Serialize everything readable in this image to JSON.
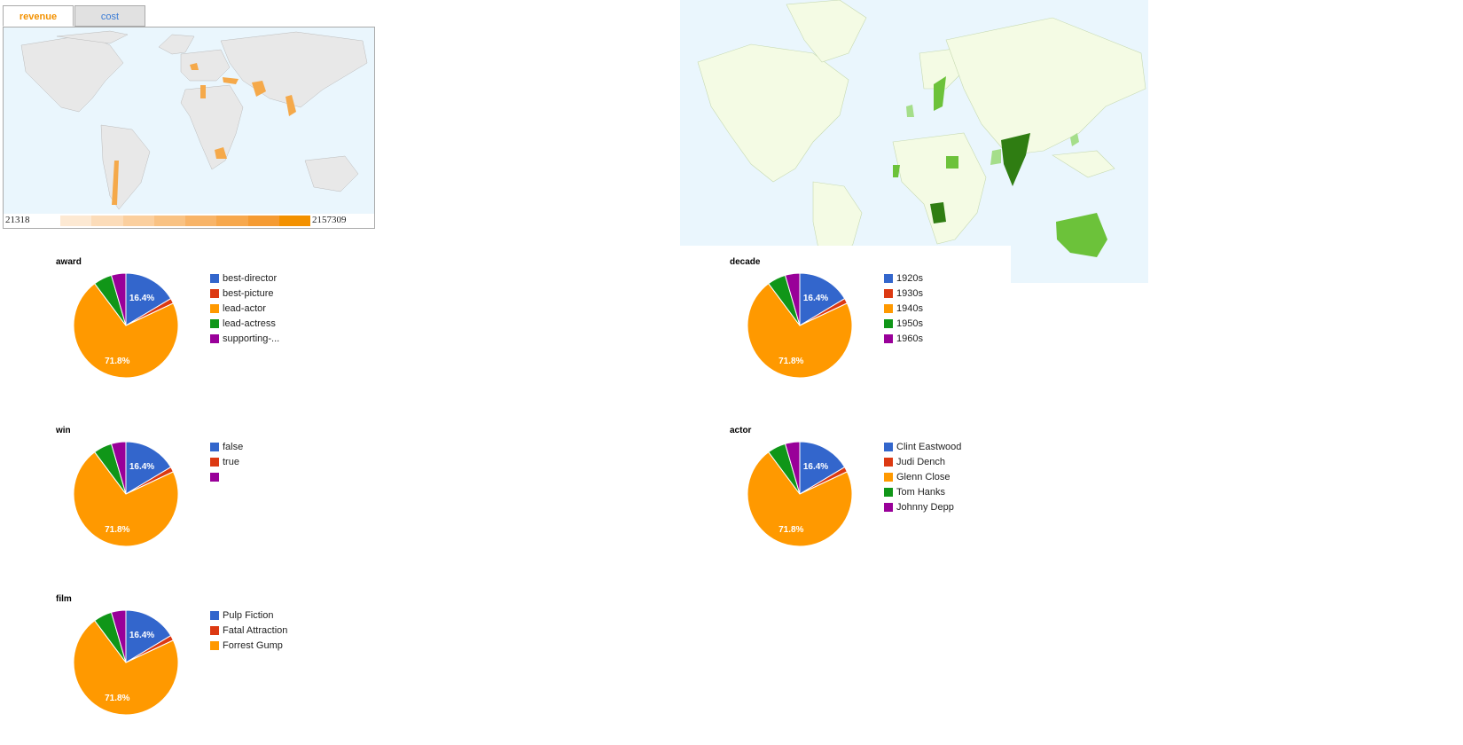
{
  "map_tabs": [
    {
      "label": "revenue",
      "active": true
    },
    {
      "label": "cost",
      "active": false
    }
  ],
  "map_legend": {
    "min": "21318",
    "max": "2157309",
    "gradient": [
      "#fde9d3",
      "#fcdcb9",
      "#fbcf9e",
      "#f9c283",
      "#f8b468",
      "#f7a84d",
      "#f59b33",
      "#f39100"
    ]
  },
  "colors": {
    "ocean": "#eaf6fd",
    "land_left": "#e8e8e8",
    "land_right": "#f4fbe4",
    "highlight_left": "#f5a94a",
    "highlight_right_light": "#a5de8a",
    "highlight_right_mid": "#6cc23a",
    "highlight_right_dark": "#2f7d12"
  },
  "pie_colors": [
    "#3366cc",
    "#dc3912",
    "#ff9900",
    "#109618",
    "#990099"
  ],
  "charts": [
    {
      "title": "award",
      "legend": [
        "best-director",
        "best-picture",
        "lead-actor",
        "lead-actress",
        "supporting-..."
      ],
      "chart_data": {
        "type": "pie",
        "labels": [
          "best-director",
          "best-picture",
          "lead-actor",
          "lead-actress",
          "supporting-..."
        ],
        "values": [
          16.4,
          1.6,
          71.8,
          5.7,
          4.5
        ],
        "data_labels": [
          "16.4%",
          "",
          "71.8%",
          "",
          ""
        ]
      }
    },
    {
      "title": "decade",
      "legend": [
        "1920s",
        "1930s",
        "1940s",
        "1950s",
        "1960s"
      ],
      "chart_data": {
        "type": "pie",
        "labels": [
          "1920s",
          "1930s",
          "1940s",
          "1950s",
          "1960s"
        ],
        "values": [
          16.4,
          1.6,
          71.8,
          5.7,
          4.5
        ],
        "data_labels": [
          "16.4%",
          "",
          "71.8%",
          "",
          ""
        ]
      }
    },
    {
      "title": "win",
      "legend": [
        "false",
        "true",
        "",
        "",
        ""
      ],
      "chart_data": {
        "type": "pie",
        "labels": [
          "false",
          "true",
          "",
          "",
          ""
        ],
        "values": [
          16.4,
          1.6,
          71.8,
          5.7,
          4.5
        ],
        "data_labels": [
          "16.4%",
          "",
          "71.8%",
          "",
          ""
        ]
      }
    },
    {
      "title": "actor",
      "legend": [
        "Clint Eastwood",
        "Judi Dench",
        "Glenn Close",
        "Tom Hanks",
        "Johnny Depp"
      ],
      "chart_data": {
        "type": "pie",
        "labels": [
          "Clint Eastwood",
          "Judi Dench",
          "Glenn Close",
          "Tom Hanks",
          "Johnny Depp"
        ],
        "values": [
          16.4,
          1.6,
          71.8,
          5.7,
          4.5
        ],
        "data_labels": [
          "16.4%",
          "",
          "71.8%",
          "",
          ""
        ]
      }
    },
    {
      "title": "film",
      "legend": [
        "Pulp Fiction",
        "Fatal Attraction",
        "Forrest Gump"
      ],
      "chart_data": {
        "type": "pie",
        "labels": [
          "Pulp Fiction",
          "Fatal Attraction",
          "Forrest Gump",
          "",
          ""
        ],
        "values": [
          16.4,
          1.6,
          71.8,
          5.7,
          4.5
        ],
        "data_labels": [
          "16.4%",
          "",
          "71.8%",
          "",
          ""
        ]
      }
    }
  ]
}
